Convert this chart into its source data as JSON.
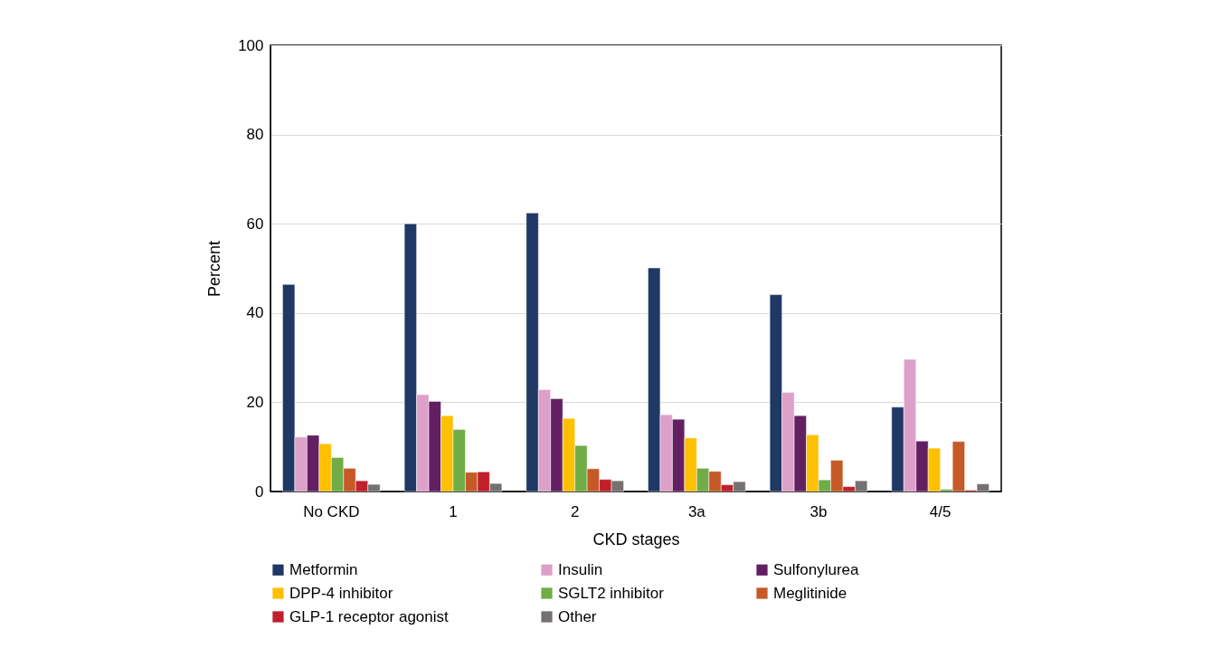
{
  "chart_data": {
    "type": "bar",
    "xlabel": "CKD stages",
    "ylabel": "Percent",
    "categories": [
      "No CKD",
      "1",
      "2",
      "3a",
      "3b",
      "4/5"
    ],
    "series": [
      {
        "name": "Metformin",
        "color": "#1f3864",
        "values": [
          46.4,
          60.0,
          62.4,
          50.1,
          44.1,
          18.9
        ]
      },
      {
        "name": "Insulin",
        "color": "#dda0c8",
        "values": [
          12.2,
          21.7,
          22.8,
          17.2,
          22.2,
          29.6
        ]
      },
      {
        "name": "Sulfonylurea",
        "color": "#622063",
        "values": [
          12.6,
          20.2,
          20.8,
          16.2,
          17.0,
          11.3
        ]
      },
      {
        "name": "DPP-4 inhibitor",
        "color": "#ffc000",
        "values": [
          10.7,
          17.0,
          16.4,
          12.0,
          12.7,
          9.7
        ]
      },
      {
        "name": "SGLT2 inhibitor",
        "color": "#70ad47",
        "values": [
          7.6,
          13.9,
          10.3,
          5.2,
          2.6,
          0.5
        ]
      },
      {
        "name": "Meglitinide",
        "color": "#c55a28",
        "values": [
          5.2,
          4.3,
          5.1,
          4.5,
          7.0,
          11.2
        ]
      },
      {
        "name": "GLP-1 receptor agonist",
        "color": "#c0202a",
        "values": [
          2.4,
          4.4,
          2.7,
          1.5,
          1.1,
          0.3
        ]
      },
      {
        "name": "Other",
        "color": "#767171",
        "values": [
          1.6,
          1.8,
          2.4,
          2.2,
          2.4,
          1.7
        ]
      }
    ],
    "ylim": [
      0,
      100
    ],
    "yticks": [
      0,
      20,
      40,
      60,
      80,
      100
    ],
    "grid": "y",
    "legend": "bottom"
  }
}
